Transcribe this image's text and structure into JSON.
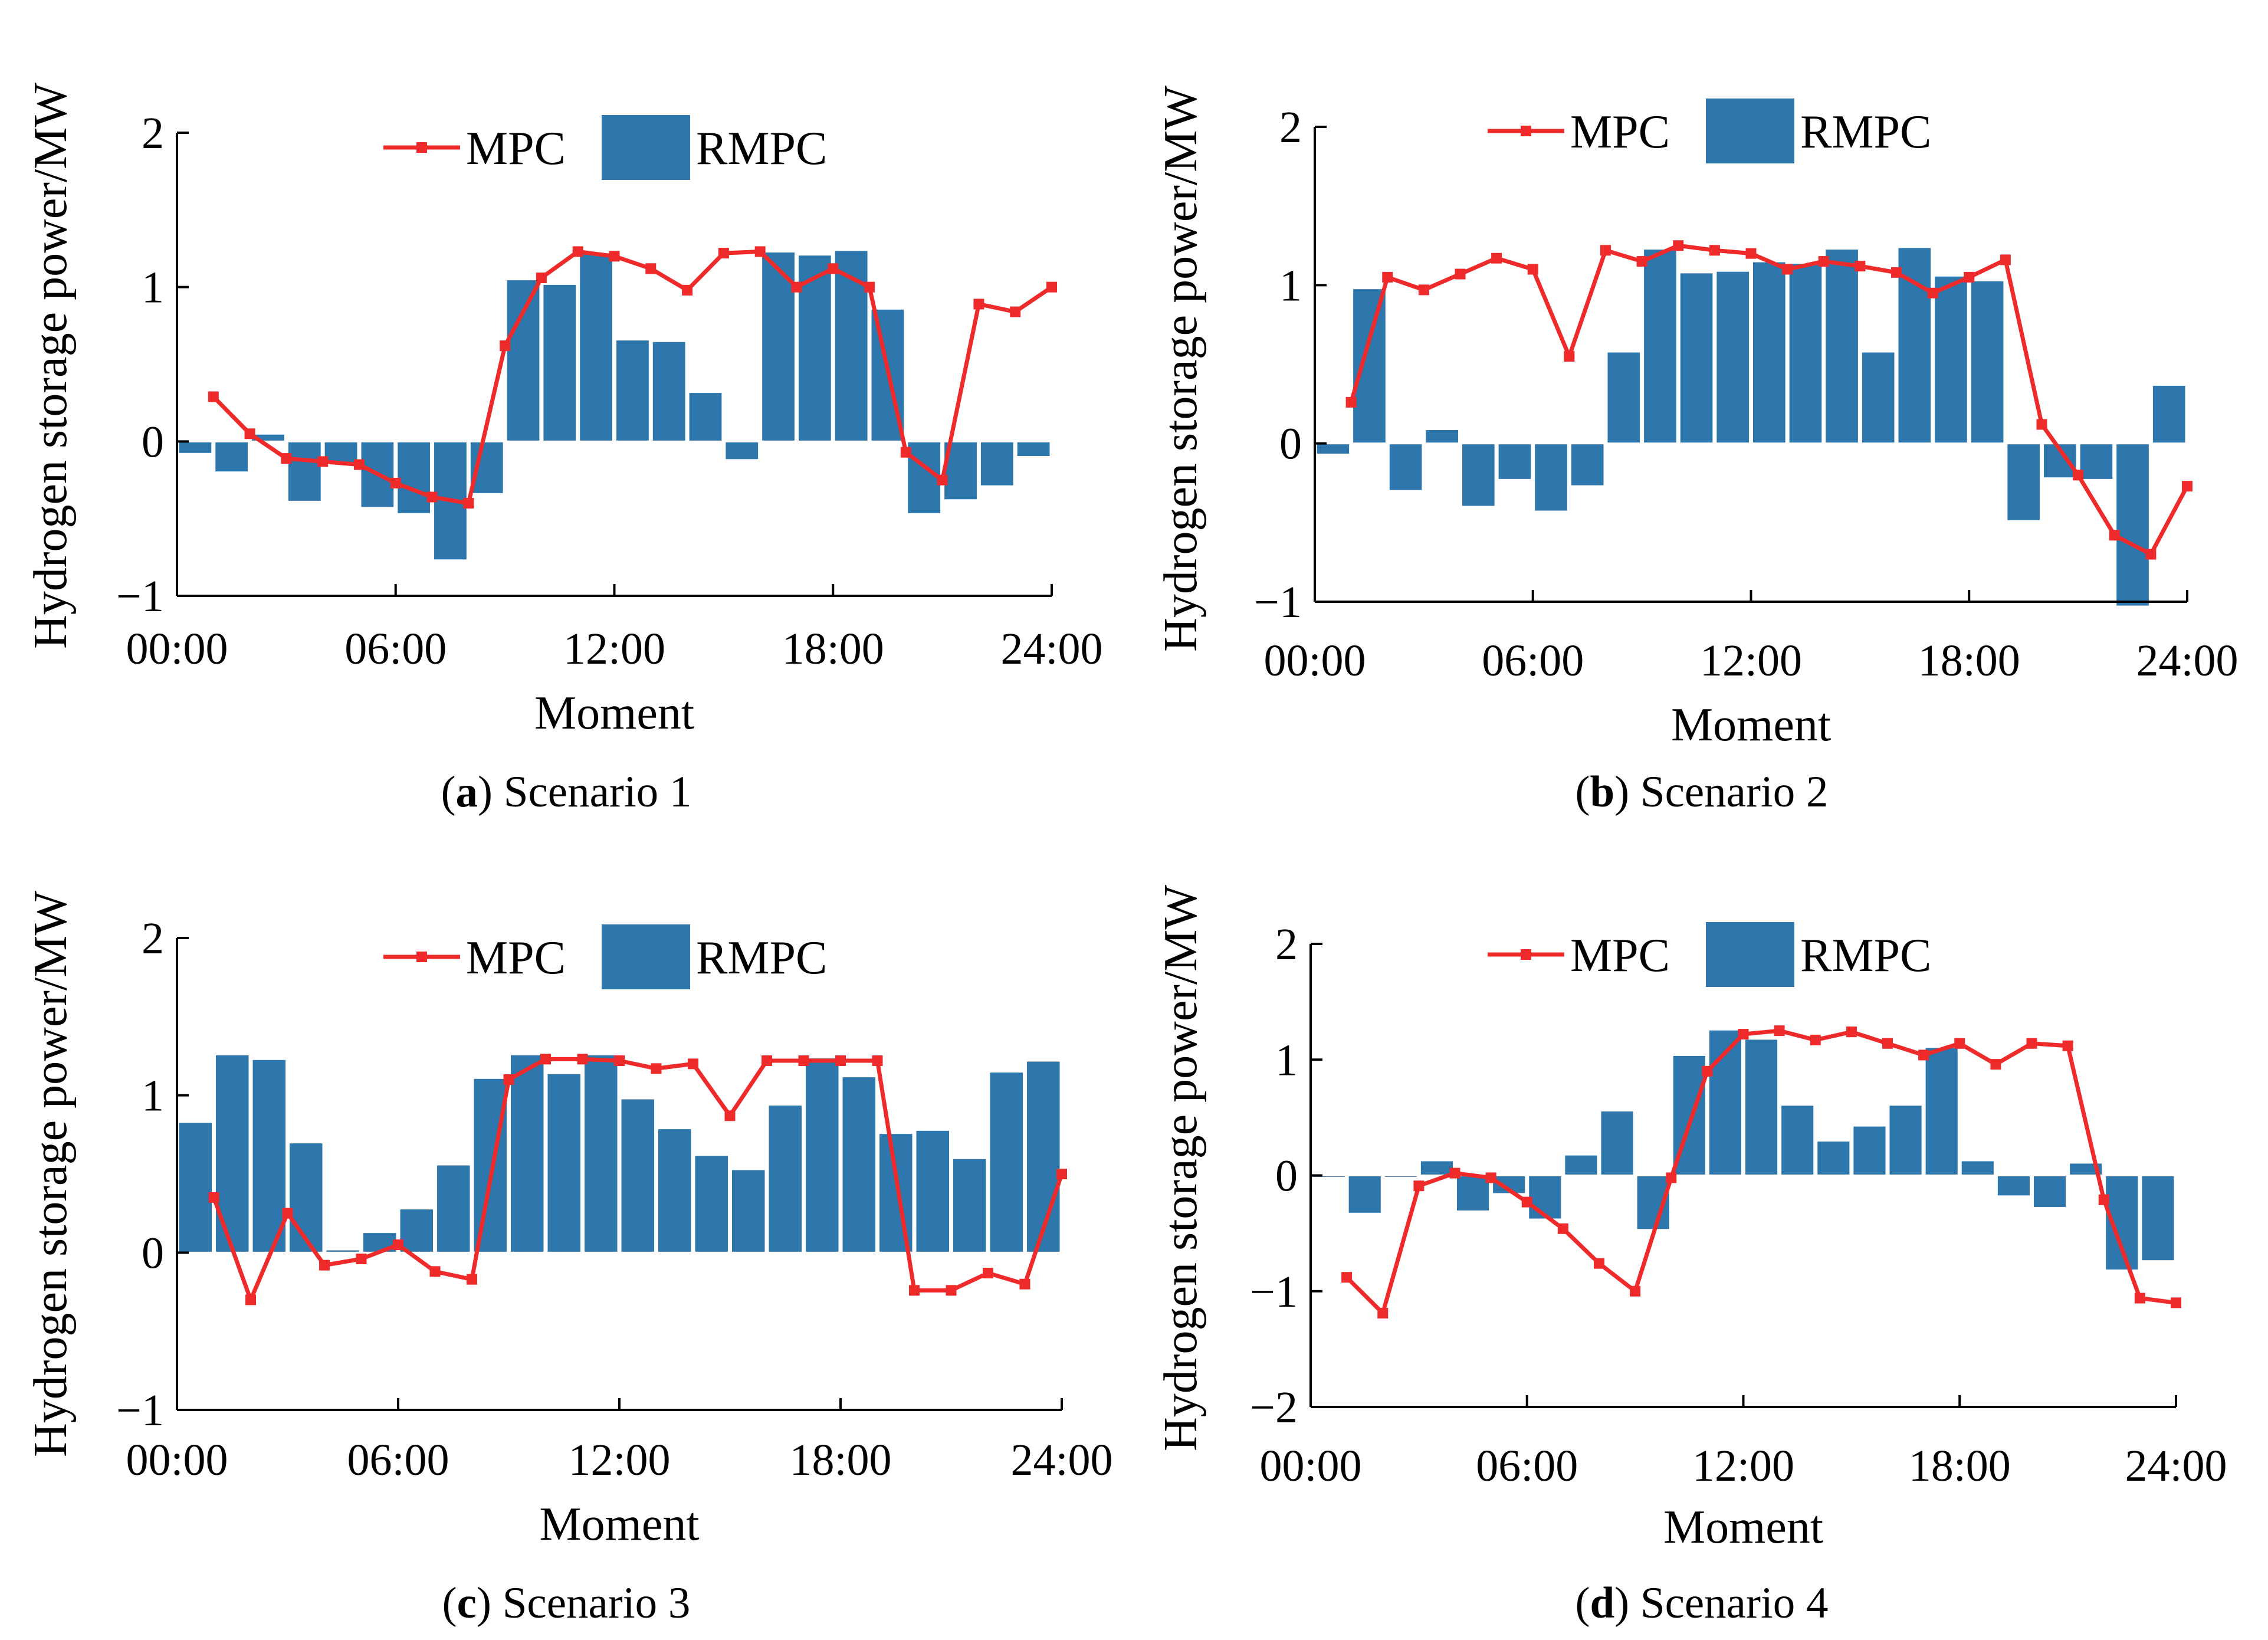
{
  "colors": {
    "mpc": "#ee2a2a",
    "rmpc": "#2e77ac",
    "axis": "#000000"
  },
  "legend": {
    "mpc": "MPC",
    "rmpc": "RMPC"
  },
  "chart_data": [
    {
      "type": "bar+line",
      "panel_tag": "a",
      "caption": "Scenario 1",
      "xlabel": "Moment",
      "ylabel": "Hydrogen storage power/MW",
      "xlim": [
        0,
        24
      ],
      "ylim": [
        -1,
        2
      ],
      "xticks": [
        "00:00",
        "06:00",
        "12:00",
        "18:00",
        "24:00"
      ],
      "yticks": [
        "−1",
        "0",
        "1",
        "2"
      ],
      "ytick_values": [
        -1,
        0,
        1,
        2
      ],
      "hours": [
        1,
        2,
        3,
        4,
        5,
        6,
        7,
        8,
        9,
        10,
        11,
        12,
        13,
        14,
        15,
        16,
        17,
        18,
        19,
        20,
        21,
        22,
        23,
        24
      ],
      "series": [
        {
          "name": "MPC",
          "kind": "line",
          "values": [
            0.29,
            0.05,
            -0.11,
            -0.13,
            -0.15,
            -0.27,
            -0.36,
            -0.4,
            0.62,
            1.06,
            1.23,
            1.2,
            1.12,
            0.98,
            1.22,
            1.23,
            1.0,
            1.12,
            1.0,
            -0.07,
            -0.25,
            0.89,
            0.84,
            1.0
          ]
        },
        {
          "name": "RMPC",
          "kind": "bar",
          "values": [
            -0.08,
            -0.2,
            0.05,
            -0.39,
            -0.15,
            -0.43,
            -0.47,
            -0.77,
            -0.34,
            1.05,
            1.02,
            1.22,
            0.66,
            0.65,
            0.32,
            -0.12,
            1.23,
            1.21,
            1.24,
            0.86,
            -0.47,
            -0.38,
            -0.29,
            -0.1
          ]
        }
      ]
    },
    {
      "type": "bar+line",
      "panel_tag": "b",
      "caption": "Scenario 2",
      "xlabel": "Moment",
      "ylabel": "Hydrogen storage power/MW",
      "xlim": [
        0,
        24
      ],
      "ylim": [
        -1,
        2
      ],
      "xticks": [
        "00:00",
        "06:00",
        "12:00",
        "18:00",
        "24:00"
      ],
      "yticks": [
        "−1",
        "0",
        "1",
        "2"
      ],
      "ytick_values": [
        -1,
        0,
        1,
        2
      ],
      "hours": [
        1,
        2,
        3,
        4,
        5,
        6,
        7,
        8,
        9,
        10,
        11,
        12,
        13,
        14,
        15,
        16,
        17,
        18,
        19,
        20,
        21,
        22,
        23,
        24
      ],
      "series": [
        {
          "name": "MPC",
          "kind": "line",
          "values": [
            0.26,
            1.05,
            0.97,
            1.07,
            1.17,
            1.1,
            0.55,
            1.22,
            1.15,
            1.25,
            1.22,
            1.2,
            1.1,
            1.15,
            1.12,
            1.08,
            0.95,
            1.05,
            1.16,
            0.12,
            -0.2,
            -0.58,
            -0.7,
            -0.27
          ]
        },
        {
          "name": "RMPC",
          "kind": "bar",
          "values": [
            -0.07,
            0.98,
            -0.3,
            0.09,
            -0.4,
            -0.23,
            -0.43,
            -0.27,
            0.58,
            1.23,
            1.08,
            1.09,
            1.15,
            1.14,
            1.23,
            0.58,
            1.24,
            1.06,
            1.03,
            -0.49,
            -0.22,
            -0.23,
            -1.03,
            0.37
          ]
        }
      ]
    },
    {
      "type": "bar+line",
      "panel_tag": "c",
      "caption": "Scenario 3",
      "xlabel": "Moment",
      "ylabel": "Hydrogen storage power/MW",
      "xlim": [
        0,
        24
      ],
      "ylim": [
        -1,
        2
      ],
      "xticks": [
        "00:00",
        "06:00",
        "12:00",
        "18:00",
        "24:00"
      ],
      "yticks": [
        "−1",
        "0",
        "1",
        "2"
      ],
      "ytick_values": [
        -1,
        0,
        1,
        2
      ],
      "hours": [
        1,
        2,
        3,
        4,
        5,
        6,
        7,
        8,
        9,
        10,
        11,
        12,
        13,
        14,
        15,
        16,
        17,
        18,
        19,
        20,
        21,
        22,
        23,
        24
      ],
      "series": [
        {
          "name": "MPC",
          "kind": "line",
          "values": [
            0.35,
            -0.3,
            0.25,
            -0.08,
            -0.04,
            0.05,
            -0.12,
            -0.17,
            1.1,
            1.23,
            1.23,
            1.22,
            1.17,
            1.2,
            0.87,
            1.22,
            1.22,
            1.22,
            1.22,
            -0.24,
            -0.24,
            -0.13,
            -0.2,
            0.5
          ]
        },
        {
          "name": "RMPC",
          "kind": "bar",
          "values": [
            0.83,
            1.26,
            1.23,
            0.7,
            0.02,
            0.13,
            0.28,
            0.56,
            1.11,
            1.26,
            1.14,
            1.26,
            0.98,
            0.79,
            0.62,
            0.53,
            0.94,
            1.24,
            1.12,
            0.76,
            0.78,
            0.6,
            1.15,
            1.22
          ]
        }
      ]
    },
    {
      "type": "bar+line",
      "panel_tag": "d",
      "caption": "Scenario 4",
      "xlabel": "Moment",
      "ylabel": "Hydrogen storage power/MW",
      "xlim": [
        0,
        24
      ],
      "ylim": [
        -2,
        2
      ],
      "xticks": [
        "00:00",
        "06:00",
        "12:00",
        "18:00",
        "24:00"
      ],
      "yticks": [
        "−2",
        "−1",
        "0",
        "1",
        "2"
      ],
      "ytick_values": [
        -2,
        -1,
        0,
        1,
        2
      ],
      "hours": [
        1,
        2,
        3,
        4,
        5,
        6,
        7,
        8,
        9,
        10,
        11,
        12,
        13,
        14,
        15,
        16,
        17,
        18,
        19,
        20,
        21,
        22,
        23,
        24
      ],
      "series": [
        {
          "name": "MPC",
          "kind": "line",
          "values": [
            -0.88,
            -1.19,
            -0.09,
            0.02,
            -0.02,
            -0.23,
            -0.46,
            -0.76,
            -1.0,
            -0.02,
            0.9,
            1.22,
            1.25,
            1.17,
            1.24,
            1.14,
            1.04,
            1.14,
            0.96,
            1.14,
            1.12,
            -0.21,
            -1.06,
            -1.1
          ]
        },
        {
          "name": "RMPC",
          "kind": "bar",
          "values": [
            -0.02,
            -0.33,
            -0.02,
            0.13,
            -0.31,
            -0.16,
            -0.38,
            0.18,
            0.56,
            -0.47,
            1.04,
            1.26,
            1.18,
            0.61,
            0.3,
            0.43,
            0.61,
            1.11,
            0.13,
            -0.18,
            -0.28,
            0.11,
            -0.82,
            -0.74
          ]
        }
      ]
    }
  ]
}
